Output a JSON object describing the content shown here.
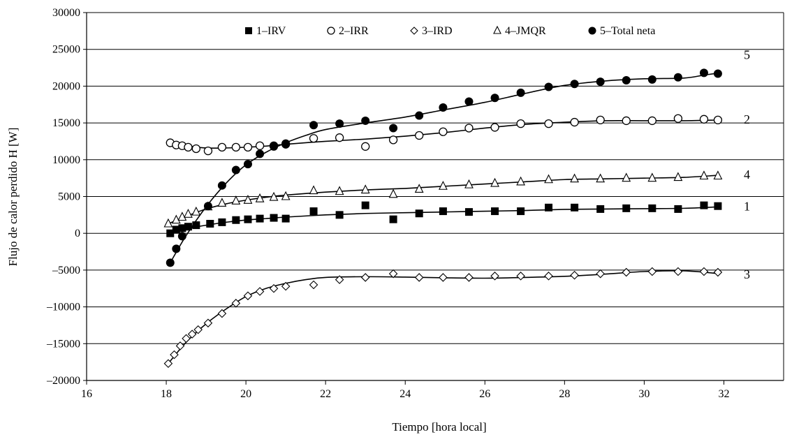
{
  "chart_data": {
    "type": "scatter",
    "title": "",
    "xlabel": "Tiempo [hora local]",
    "ylabel": "Flujo de calor perdido H [W]",
    "xlim": [
      16,
      33.5
    ],
    "ylim": [
      -20000,
      30000
    ],
    "x_ticks": [
      16,
      18,
      20,
      22,
      24,
      26,
      28,
      30,
      32
    ],
    "y_ticks": [
      -20000,
      -15000,
      -10000,
      -5000,
      0,
      5000,
      10000,
      15000,
      20000,
      25000,
      30000
    ],
    "grid": "horizontal",
    "legend_position": "top-center",
    "series": [
      {
        "name": "1–IRV",
        "marker": "filled-square",
        "curve_label": "1",
        "x": [
          18.1,
          18.25,
          18.4,
          18.55,
          18.75,
          19.1,
          19.4,
          19.75,
          20.05,
          20.35,
          20.7,
          21.0,
          21.7,
          22.35,
          23.0,
          23.7,
          24.35,
          24.95,
          25.6,
          26.25,
          26.9,
          27.6,
          28.25,
          28.9,
          29.55,
          30.2,
          30.85,
          31.5,
          31.85
        ],
        "y": [
          0,
          500,
          700,
          900,
          1100,
          1300,
          1500,
          1800,
          1900,
          2000,
          2100,
          2000,
          3000,
          2500,
          3800,
          1900,
          2700,
          3000,
          2900,
          3000,
          3000,
          3500,
          3500,
          3300,
          3400,
          3400,
          3300,
          3800,
          3700
        ],
        "fit_x": [
          18.1,
          18.5,
          19.0,
          19.5,
          20.0,
          20.5,
          21.0,
          22.0,
          23.0,
          24.0,
          25.0,
          26.0,
          27.0,
          28.0,
          29.0,
          30.0,
          31.0,
          31.9
        ],
        "fit_y": [
          0,
          600,
          1100,
          1500,
          1800,
          2000,
          2200,
          2500,
          2700,
          2800,
          2900,
          3000,
          3100,
          3250,
          3300,
          3350,
          3400,
          3600
        ]
      },
      {
        "name": "2–IRR",
        "marker": "open-circle",
        "curve_label": "2",
        "x": [
          18.1,
          18.25,
          18.4,
          18.55,
          18.75,
          19.05,
          19.4,
          19.75,
          20.05,
          20.35,
          20.7,
          21.0,
          21.7,
          22.35,
          23.0,
          23.7,
          24.35,
          24.95,
          25.6,
          26.25,
          26.9,
          27.6,
          28.25,
          28.9,
          29.55,
          30.2,
          30.85,
          31.5,
          31.85
        ],
        "y": [
          12300,
          12000,
          11900,
          11700,
          11500,
          11200,
          11700,
          11700,
          11700,
          11900,
          11900,
          12100,
          12900,
          13000,
          11800,
          12700,
          13300,
          13800,
          14300,
          14400,
          14900,
          14900,
          15100,
          15400,
          15300,
          15300,
          15600,
          15500,
          15400
        ],
        "fit_x": [
          18.1,
          18.5,
          19.0,
          19.5,
          20.0,
          20.5,
          21.0,
          22.0,
          23.0,
          24.0,
          25.0,
          26.0,
          27.0,
          28.0,
          29.0,
          30.0,
          31.0,
          31.9
        ],
        "fit_y": [
          12300,
          11900,
          11600,
          11600,
          11700,
          11850,
          12100,
          12500,
          12800,
          13200,
          13700,
          14300,
          14800,
          15100,
          15300,
          15300,
          15300,
          15400
        ]
      },
      {
        "name": "3–IRD",
        "marker": "open-diamond",
        "curve_label": "3",
        "x": [
          18.05,
          18.2,
          18.35,
          18.5,
          18.65,
          18.8,
          19.05,
          19.4,
          19.75,
          20.05,
          20.35,
          20.7,
          21.0,
          21.7,
          22.35,
          23.0,
          23.7,
          24.35,
          24.95,
          25.6,
          26.25,
          26.9,
          27.6,
          28.25,
          28.9,
          29.55,
          30.2,
          30.85,
          31.5,
          31.85
        ],
        "y": [
          -17700,
          -16500,
          -15300,
          -14300,
          -13700,
          -13100,
          -12200,
          -10900,
          -9500,
          -8500,
          -7900,
          -7500,
          -7200,
          -7000,
          -6300,
          -6000,
          -5500,
          -6000,
          -6000,
          -6000,
          -5800,
          -5800,
          -5800,
          -5700,
          -5500,
          -5300,
          -5200,
          -5200,
          -5200,
          -5300
        ],
        "fit_x": [
          18.05,
          18.5,
          19.0,
          19.5,
          20.0,
          20.5,
          21.0,
          21.5,
          22.0,
          23.0,
          24.0,
          25.0,
          26.0,
          27.0,
          28.0,
          29.0,
          30.0,
          31.0,
          31.9
        ],
        "fit_y": [
          -17700,
          -14800,
          -12300,
          -10300,
          -8600,
          -7500,
          -6800,
          -6300,
          -6000,
          -5900,
          -5950,
          -6050,
          -6100,
          -6000,
          -5850,
          -5550,
          -5200,
          -5100,
          -5500
        ]
      },
      {
        "name": "4–JMQR",
        "marker": "open-triangle",
        "curve_label": "4",
        "x": [
          18.05,
          18.25,
          18.4,
          18.55,
          18.75,
          19.05,
          19.4,
          19.75,
          20.05,
          20.35,
          20.7,
          21.0,
          21.7,
          22.35,
          23.0,
          23.7,
          24.35,
          24.95,
          25.6,
          26.25,
          26.9,
          27.6,
          28.25,
          28.9,
          29.55,
          30.2,
          30.85,
          31.5,
          31.85
        ],
        "y": [
          1300,
          1800,
          2200,
          2600,
          2900,
          3600,
          4100,
          4400,
          4500,
          4700,
          4900,
          5000,
          5800,
          5700,
          5900,
          5300,
          6000,
          6400,
          6600,
          6800,
          7000,
          7300,
          7400,
          7400,
          7500,
          7500,
          7600,
          7800,
          7800
        ],
        "fit_x": [
          18.05,
          18.5,
          19.0,
          19.5,
          20.0,
          20.5,
          21.0,
          22.0,
          23.0,
          24.0,
          25.0,
          26.0,
          27.0,
          28.0,
          29.0,
          30.0,
          31.0,
          31.9
        ],
        "fit_y": [
          1300,
          2300,
          3300,
          4000,
          4500,
          4900,
          5200,
          5600,
          5900,
          6100,
          6400,
          6700,
          7000,
          7300,
          7400,
          7500,
          7600,
          7900
        ]
      },
      {
        "name": "5–Total neta",
        "marker": "filled-circle",
        "curve_label": "5",
        "x": [
          18.1,
          18.25,
          18.4,
          19.05,
          19.4,
          19.75,
          20.05,
          20.35,
          20.7,
          21.0,
          21.7,
          22.35,
          23.0,
          23.7,
          24.35,
          24.95,
          25.6,
          26.25,
          26.9,
          27.6,
          28.25,
          28.9,
          29.55,
          30.2,
          30.85,
          31.5,
          31.85
        ],
        "y": [
          -4000,
          -2100,
          -400,
          3700,
          6500,
          8600,
          9400,
          10800,
          11800,
          12200,
          14700,
          14900,
          15300,
          14300,
          16000,
          17100,
          17900,
          18400,
          19100,
          19900,
          20300,
          20600,
          20800,
          20900,
          21200,
          21800,
          21700
        ],
        "fit_x": [
          18.1,
          18.5,
          19.0,
          19.5,
          20.0,
          20.5,
          21.0,
          21.5,
          22.0,
          23.0,
          24.0,
          25.0,
          26.0,
          27.0,
          28.0,
          29.0,
          30.0,
          31.0,
          31.5,
          31.9
        ],
        "fit_y": [
          -4000,
          -300,
          3600,
          6800,
          9300,
          11000,
          12300,
          13300,
          14100,
          15000,
          15800,
          16800,
          17800,
          19000,
          20100,
          20700,
          21000,
          21100,
          21500,
          21800
        ]
      }
    ]
  }
}
